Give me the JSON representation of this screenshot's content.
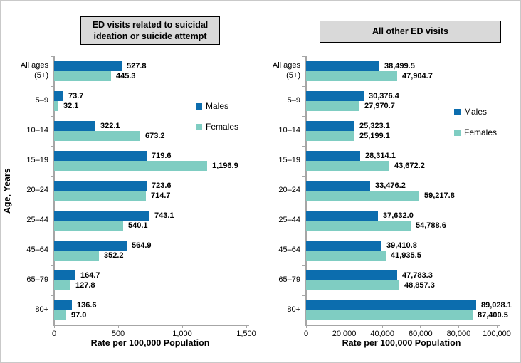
{
  "figure": {
    "y_axis_label": "Age, Years",
    "x_axis_label": "Rate per 100,000 Population",
    "colors": {
      "males": "#0C6DAE",
      "females": "#7FCDC2",
      "axis": "#A6A6A6",
      "title_box_bg": "#D9D9D9",
      "title_box_border": "#000000"
    }
  },
  "chart_data": [
    {
      "type": "bar",
      "orientation": "horizontal",
      "title": "ED visits related to suicidal ideation or suicide attempt",
      "categories": [
        "All ages\n(5+)",
        "5–9",
        "10–14",
        "15–19",
        "20–24",
        "25–44",
        "45–64",
        "65–79",
        "80+"
      ],
      "series": [
        {
          "name": "Males",
          "values": [
            527.8,
            73.7,
            322.1,
            719.6,
            723.6,
            743.1,
            564.9,
            164.7,
            136.6
          ],
          "labels": [
            "527.8",
            "73.7",
            "322.1",
            "719.6",
            "723.6",
            "743.1",
            "564.9",
            "164.7",
            "136.6"
          ]
        },
        {
          "name": "Females",
          "values": [
            445.3,
            32.1,
            673.2,
            1196.9,
            714.7,
            540.1,
            352.2,
            127.8,
            97.0
          ],
          "labels": [
            "445.3",
            "32.1",
            "673.2",
            "1,196.9",
            "714.7",
            "540.1",
            "352.2",
            "127.8",
            "97.0"
          ]
        }
      ],
      "xlabel": "Rate per 100,000 Population",
      "ylabel": "Age, Years",
      "xlim": [
        0,
        1500
      ],
      "xticks": [
        0,
        500,
        1000,
        1500
      ],
      "xtick_labels": [
        "0",
        "500",
        "1,000",
        "1,500"
      ],
      "grid": false,
      "legend_position": "right-inside"
    },
    {
      "type": "bar",
      "orientation": "horizontal",
      "title": "All other ED visits",
      "categories": [
        "All ages\n(5+)",
        "5–9",
        "10–14",
        "15–19",
        "20–24",
        "25–44",
        "45–64",
        "65–79",
        "80+"
      ],
      "series": [
        {
          "name": "Males",
          "values": [
            38499.5,
            30376.4,
            25323.1,
            28314.1,
            33476.2,
            37632.0,
            39410.8,
            47783.3,
            89028.1
          ],
          "labels": [
            "38,499.5",
            "30,376.4",
            "25,323.1",
            "28,314.1",
            "33,476.2",
            "37,632.0",
            "39,410.8",
            "47,783.3",
            "89,028.1"
          ]
        },
        {
          "name": "Females",
          "values": [
            47904.7,
            27970.7,
            25199.1,
            43672.2,
            59217.8,
            54788.6,
            41935.5,
            48857.3,
            87400.5
          ],
          "labels": [
            "47,904.7",
            "27,970.7",
            "25,199.1",
            "43,672.2",
            "59,217.8",
            "54,788.6",
            "41,935.5",
            "48,857.3",
            "87,400.5"
          ]
        }
      ],
      "xlabel": "Rate per 100,000 Population",
      "ylabel": "Age, Years",
      "xlim": [
        0,
        100000
      ],
      "xticks": [
        0,
        20000,
        40000,
        60000,
        80000,
        100000
      ],
      "xtick_labels": [
        "0",
        "20,000",
        "40,000",
        "60,000",
        "80,000",
        "100,000"
      ],
      "grid": false,
      "legend_position": "right-inside"
    }
  ]
}
